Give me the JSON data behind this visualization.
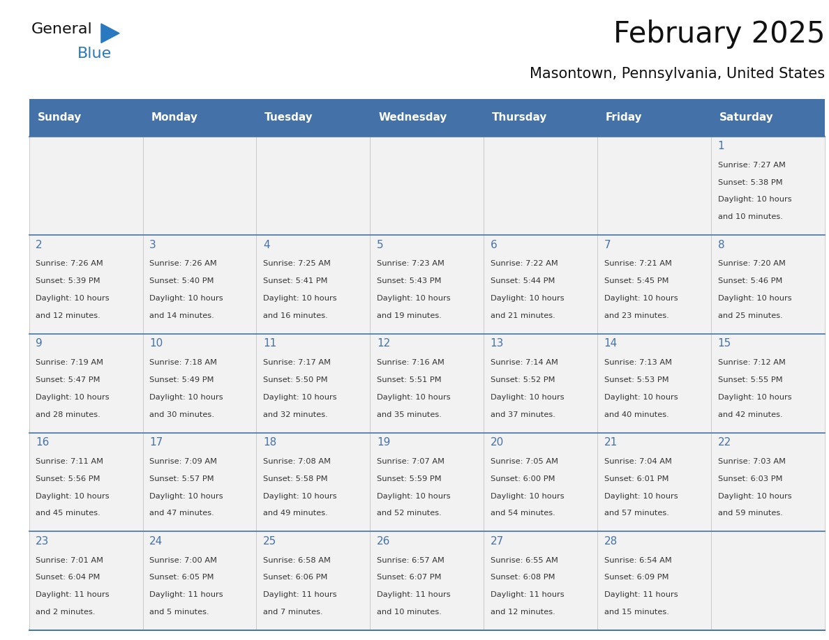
{
  "title": "February 2025",
  "subtitle": "Masontown, Pennsylvania, United States",
  "days_of_week": [
    "Sunday",
    "Monday",
    "Tuesday",
    "Wednesday",
    "Thursday",
    "Friday",
    "Saturday"
  ],
  "header_bg": "#4472A8",
  "header_text_color": "#FFFFFF",
  "cell_bg": "#F2F2F2",
  "border_color": "#4472A8",
  "day_number_color": "#4472A8",
  "text_color": "#333333",
  "calendar_data": [
    [
      null,
      null,
      null,
      null,
      null,
      null,
      {
        "day": 1,
        "sunrise": "7:27 AM",
        "sunset": "5:38 PM",
        "daylight": "10 hours and 10 minutes."
      }
    ],
    [
      {
        "day": 2,
        "sunrise": "7:26 AM",
        "sunset": "5:39 PM",
        "daylight": "10 hours and 12 minutes."
      },
      {
        "day": 3,
        "sunrise": "7:26 AM",
        "sunset": "5:40 PM",
        "daylight": "10 hours and 14 minutes."
      },
      {
        "day": 4,
        "sunrise": "7:25 AM",
        "sunset": "5:41 PM",
        "daylight": "10 hours and 16 minutes."
      },
      {
        "day": 5,
        "sunrise": "7:23 AM",
        "sunset": "5:43 PM",
        "daylight": "10 hours and 19 minutes."
      },
      {
        "day": 6,
        "sunrise": "7:22 AM",
        "sunset": "5:44 PM",
        "daylight": "10 hours and 21 minutes."
      },
      {
        "day": 7,
        "sunrise": "7:21 AM",
        "sunset": "5:45 PM",
        "daylight": "10 hours and 23 minutes."
      },
      {
        "day": 8,
        "sunrise": "7:20 AM",
        "sunset": "5:46 PM",
        "daylight": "10 hours and 25 minutes."
      }
    ],
    [
      {
        "day": 9,
        "sunrise": "7:19 AM",
        "sunset": "5:47 PM",
        "daylight": "10 hours and 28 minutes."
      },
      {
        "day": 10,
        "sunrise": "7:18 AM",
        "sunset": "5:49 PM",
        "daylight": "10 hours and 30 minutes."
      },
      {
        "day": 11,
        "sunrise": "7:17 AM",
        "sunset": "5:50 PM",
        "daylight": "10 hours and 32 minutes."
      },
      {
        "day": 12,
        "sunrise": "7:16 AM",
        "sunset": "5:51 PM",
        "daylight": "10 hours and 35 minutes."
      },
      {
        "day": 13,
        "sunrise": "7:14 AM",
        "sunset": "5:52 PM",
        "daylight": "10 hours and 37 minutes."
      },
      {
        "day": 14,
        "sunrise": "7:13 AM",
        "sunset": "5:53 PM",
        "daylight": "10 hours and 40 minutes."
      },
      {
        "day": 15,
        "sunrise": "7:12 AM",
        "sunset": "5:55 PM",
        "daylight": "10 hours and 42 minutes."
      }
    ],
    [
      {
        "day": 16,
        "sunrise": "7:11 AM",
        "sunset": "5:56 PM",
        "daylight": "10 hours and 45 minutes."
      },
      {
        "day": 17,
        "sunrise": "7:09 AM",
        "sunset": "5:57 PM",
        "daylight": "10 hours and 47 minutes."
      },
      {
        "day": 18,
        "sunrise": "7:08 AM",
        "sunset": "5:58 PM",
        "daylight": "10 hours and 49 minutes."
      },
      {
        "day": 19,
        "sunrise": "7:07 AM",
        "sunset": "5:59 PM",
        "daylight": "10 hours and 52 minutes."
      },
      {
        "day": 20,
        "sunrise": "7:05 AM",
        "sunset": "6:00 PM",
        "daylight": "10 hours and 54 minutes."
      },
      {
        "day": 21,
        "sunrise": "7:04 AM",
        "sunset": "6:01 PM",
        "daylight": "10 hours and 57 minutes."
      },
      {
        "day": 22,
        "sunrise": "7:03 AM",
        "sunset": "6:03 PM",
        "daylight": "10 hours and 59 minutes."
      }
    ],
    [
      {
        "day": 23,
        "sunrise": "7:01 AM",
        "sunset": "6:04 PM",
        "daylight": "11 hours and 2 minutes."
      },
      {
        "day": 24,
        "sunrise": "7:00 AM",
        "sunset": "6:05 PM",
        "daylight": "11 hours and 5 minutes."
      },
      {
        "day": 25,
        "sunrise": "6:58 AM",
        "sunset": "6:06 PM",
        "daylight": "11 hours and 7 minutes."
      },
      {
        "day": 26,
        "sunrise": "6:57 AM",
        "sunset": "6:07 PM",
        "daylight": "11 hours and 10 minutes."
      },
      {
        "day": 27,
        "sunrise": "6:55 AM",
        "sunset": "6:08 PM",
        "daylight": "11 hours and 12 minutes."
      },
      {
        "day": 28,
        "sunrise": "6:54 AM",
        "sunset": "6:09 PM",
        "daylight": "11 hours and 15 minutes."
      },
      null
    ]
  ]
}
